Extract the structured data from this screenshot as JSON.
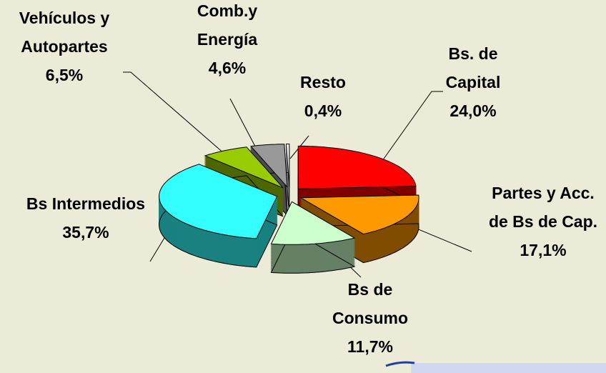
{
  "chart_data": {
    "type": "pie",
    "categories": [
      "Bs. de Capital",
      "Partes y Acc. de Bs de Cap.",
      "Bs de Consumo",
      "Bs Intermedios",
      "Vehículos y Autopartes",
      "Comb.y Energía",
      "Resto"
    ],
    "values": [
      24.0,
      17.1,
      11.7,
      35.7,
      6.5,
      4.6,
      0.4
    ],
    "value_labels": [
      "24,0%",
      "17,1%",
      "11,7%",
      "35,7%",
      "6,5%",
      "4,6%",
      "0,4%"
    ],
    "colors": [
      "#ff0000",
      "#ff9900",
      "#ccffcc",
      "#33ffff",
      "#99cc00",
      "#999999",
      "#ffffff"
    ]
  }
}
